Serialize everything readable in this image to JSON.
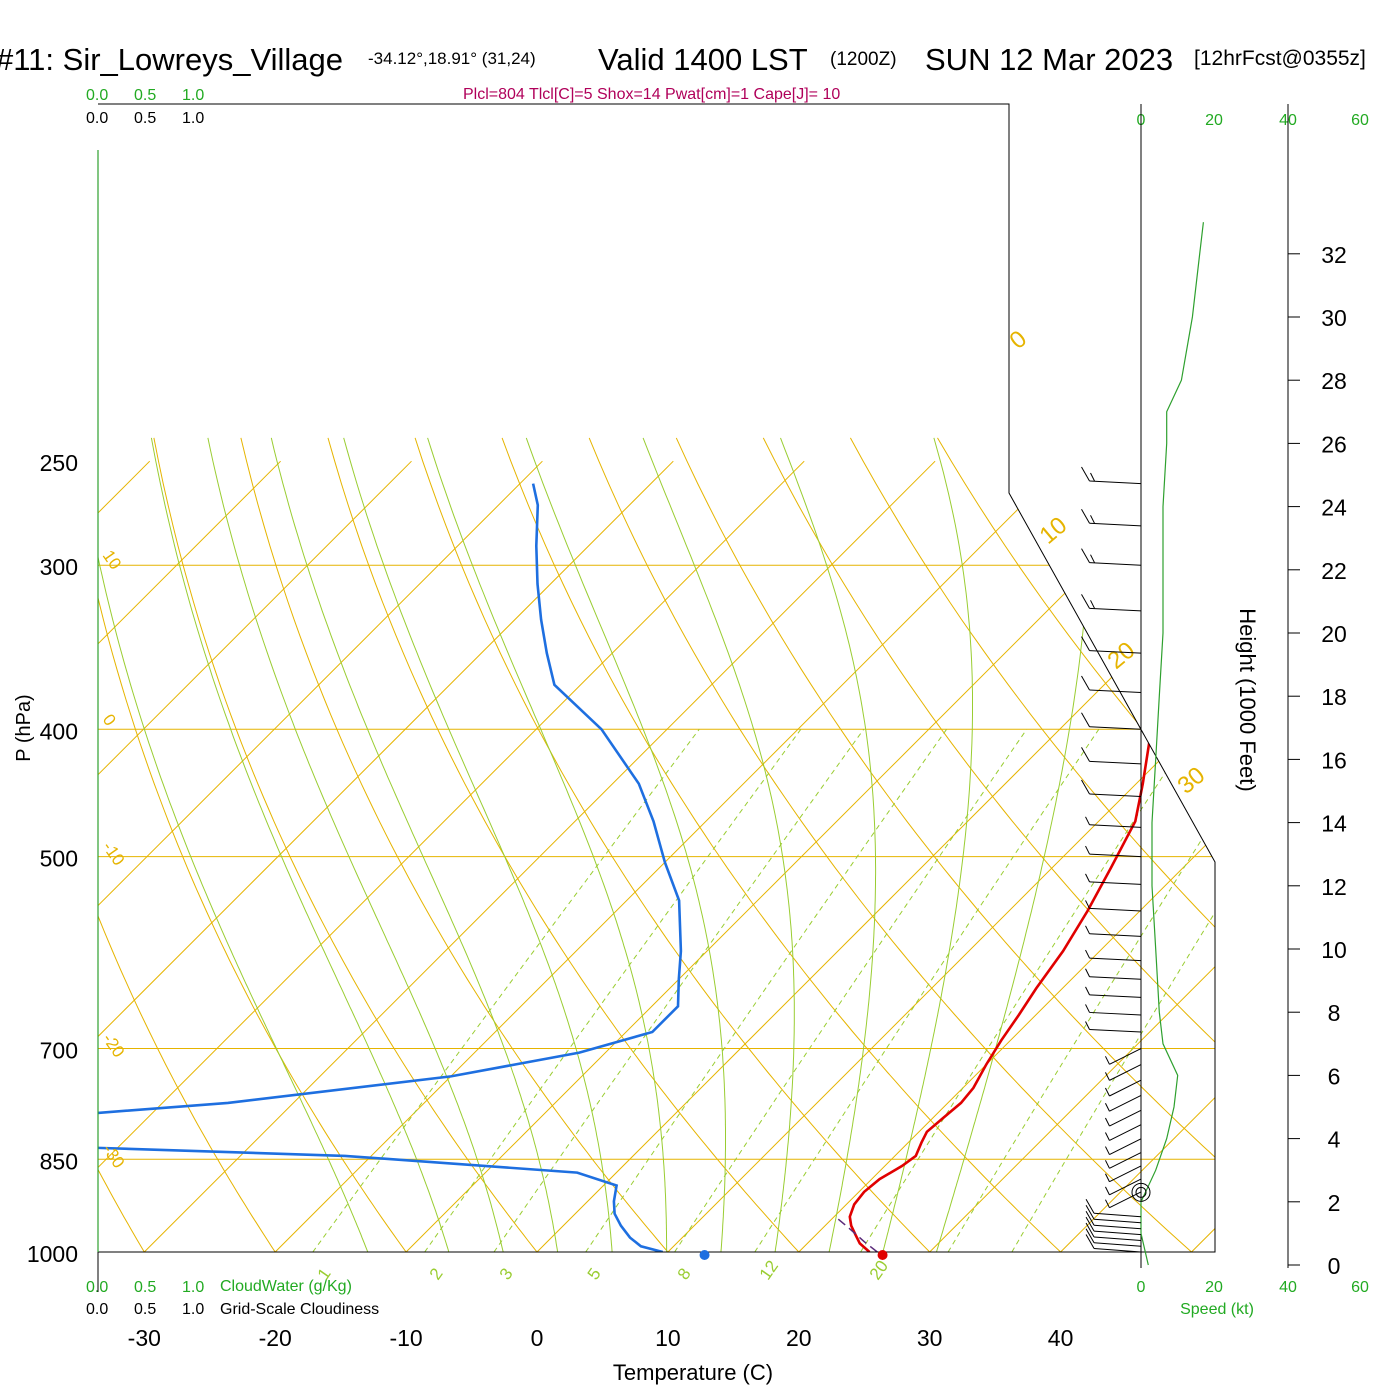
{
  "header": {
    "station": "#11: Sir_Lowreys_Village",
    "coords": "-34.12°,18.91° (31,24)",
    "valid": "Valid 1400 LST",
    "zulu": "(1200Z)",
    "date": "SUN 12 Mar 2023",
    "forecast": "[12hrFcst@0355z]",
    "indices": "Plcl=804 Tlcl[C]=5 Shox=14 Pwat[cm]=1 Cape[J]= 10"
  },
  "scales": {
    "cloud_top": [
      "0.0",
      "0.5",
      "1.0"
    ],
    "cloud_top_black": [
      "0.0",
      "0.5",
      "1.0"
    ],
    "cloud_bottom": [
      "0.0",
      "0.5",
      "1.0"
    ],
    "cloud_bottom_black": [
      "0.0",
      "0.5",
      "1.0"
    ],
    "cloudwater_label": "CloudWater (g/Kg)",
    "cloudiness_label": "Grid-Scale Cloudiness",
    "speed_ticks": [
      "0",
      "20",
      "40",
      "60"
    ],
    "speed_label": "Speed (kt)"
  },
  "colors": {
    "isotherm": "#e6b400",
    "dry_adiabat": "#9acd32",
    "moist_adiabat": "#9acd32",
    "mixing_ratio": "#9acd32",
    "temperature": "#e00000",
    "dewpoint": "#1e6fe0",
    "speed": "#2ea02e",
    "green_text": "#22aa22",
    "magenta": "#b0005a"
  },
  "chart_data": {
    "type": "line",
    "title": "Skew-T log-P sounding",
    "xlabel": "Temperature (C)",
    "ylabel": "P (hPa)",
    "y2label": "Height (1000 Feet)",
    "xlim": [
      -34,
      36
    ],
    "ylim": [
      1000,
      250
    ],
    "pressure_ticks": [
      1000,
      850,
      700,
      500,
      400,
      300,
      250
    ],
    "temperature_ticks": [
      -30,
      -20,
      -10,
      0,
      10,
      20,
      30,
      40
    ],
    "height_ticks": [
      0,
      2,
      4,
      6,
      8,
      10,
      12,
      14,
      16,
      18,
      20,
      22,
      24,
      26,
      28,
      30,
      32
    ],
    "isotherm_labels": [
      {
        "temp": 10,
        "text": "10"
      },
      {
        "temp": 0,
        "text": "0"
      },
      {
        "temp": -10,
        "text": "-10"
      },
      {
        "temp": -20,
        "text": "-20"
      },
      {
        "temp": -30,
        "text": "-30"
      }
    ],
    "isotherm_labels_right": [
      {
        "temp": 0,
        "text": "0"
      },
      {
        "temp": 10,
        "text": "10"
      },
      {
        "temp": 20,
        "text": "20"
      },
      {
        "temp": 30,
        "text": "30"
      }
    ],
    "mixing_ratio_labels": [
      "1",
      "2",
      "3",
      "5",
      "8",
      "12",
      "20"
    ],
    "mixing_ratio_values": [
      1,
      2,
      3,
      5,
      8,
      12,
      20
    ],
    "series": [
      {
        "name": "Temperature",
        "points": [
          [
            25.4,
            1000
          ],
          [
            24.0,
            985
          ],
          [
            23.0,
            970
          ],
          [
            22.0,
            955
          ],
          [
            21.2,
            940
          ],
          [
            20.6,
            920
          ],
          [
            20.4,
            900
          ],
          [
            20.6,
            880
          ],
          [
            21.3,
            860
          ],
          [
            21.6,
            845
          ],
          [
            21.0,
            825
          ],
          [
            20.6,
            810
          ],
          [
            20.8,
            790
          ],
          [
            21.0,
            770
          ],
          [
            20.8,
            750
          ],
          [
            20.0,
            720
          ],
          [
            19.3,
            690
          ],
          [
            18.7,
            660
          ],
          [
            18.0,
            630
          ],
          [
            17.2,
            590
          ],
          [
            16.0,
            550
          ],
          [
            14.5,
            510
          ],
          [
            12.8,
            470
          ],
          [
            10.5,
            440
          ],
          [
            7.0,
            400
          ],
          [
            2.0,
            355
          ],
          [
            -4.0,
            315
          ],
          [
            -9.0,
            285
          ],
          [
            -14.5,
            260
          ]
        ]
      },
      {
        "name": "Dewpoint",
        "points": [
          [
            9.6,
            1000
          ],
          [
            7.5,
            990
          ],
          [
            6.0,
            975
          ],
          [
            4.4,
            955
          ],
          [
            3.0,
            935
          ],
          [
            2.0,
            915
          ],
          [
            1.0,
            890
          ],
          [
            -3.0,
            870
          ],
          [
            -22.0,
            845
          ],
          [
            -55.0,
            825
          ],
          [
            -55.0,
            800
          ],
          [
            -35.0,
            770
          ],
          [
            -20.0,
            735
          ],
          [
            -12.0,
            705
          ],
          [
            -8.0,
            680
          ],
          [
            -8.0,
            650
          ],
          [
            -10.0,
            620
          ],
          [
            -12.0,
            590
          ],
          [
            -16.0,
            540
          ],
          [
            -20.0,
            505
          ],
          [
            -24.0,
            470
          ],
          [
            -28.0,
            440
          ],
          [
            -35.0,
            400
          ],
          [
            -42.0,
            370
          ],
          [
            -45.0,
            350
          ],
          [
            -48.0,
            330
          ],
          [
            -51.0,
            310
          ],
          [
            -54.0,
            290
          ],
          [
            -57.0,
            270
          ],
          [
            -59.0,
            260
          ]
        ]
      },
      {
        "name": "Parcel",
        "points": [
          [
            26.0,
            1000
          ],
          [
            24.2,
            982
          ],
          [
            22.3,
            962
          ],
          [
            20.5,
            944
          ]
        ]
      }
    ],
    "surface_temperature": {
      "temp": 26.4,
      "pressure": 1000
    },
    "surface_dewpoint": {
      "temp": 12.8,
      "pressure": 1000
    },
    "speed_profile": [
      {
        "height": 0,
        "speed": 2
      },
      {
        "height": 1,
        "speed": 0
      },
      {
        "height": 2,
        "speed": 0
      },
      {
        "height": 3,
        "speed": 4
      },
      {
        "height": 4,
        "speed": 7
      },
      {
        "height": 5,
        "speed": 9
      },
      {
        "height": 6,
        "speed": 10
      },
      {
        "height": 7,
        "speed": 6
      },
      {
        "height": 8,
        "speed": 5
      },
      {
        "height": 10,
        "speed": 4
      },
      {
        "height": 12,
        "speed": 3
      },
      {
        "height": 14,
        "speed": 3
      },
      {
        "height": 16,
        "speed": 4
      },
      {
        "height": 18,
        "speed": 5
      },
      {
        "height": 20,
        "speed": 6
      },
      {
        "height": 22,
        "speed": 6
      },
      {
        "height": 24,
        "speed": 6
      },
      {
        "height": 26,
        "speed": 7
      },
      {
        "height": 27,
        "speed": 7
      },
      {
        "height": 28,
        "speed": 11
      },
      {
        "height": 30,
        "speed": 14
      },
      {
        "height": 32,
        "speed": 16
      },
      {
        "height": 33,
        "speed": 17
      }
    ],
    "wind_barbs": [
      {
        "pressure": 1000,
        "speed_kt": 10
      },
      {
        "pressure": 990,
        "speed_kt": 10
      },
      {
        "pressure": 980,
        "speed_kt": 10
      },
      {
        "pressure": 970,
        "speed_kt": 10
      },
      {
        "pressure": 960,
        "speed_kt": 10
      },
      {
        "pressure": 950,
        "speed_kt": 10
      },
      {
        "pressure": 940,
        "speed_kt": 10
      },
      {
        "pressure": 900,
        "speed_kt": 5
      },
      {
        "pressure": 880,
        "speed_kt": 5
      },
      {
        "pressure": 860,
        "speed_kt": 5
      },
      {
        "pressure": 840,
        "speed_kt": 5
      },
      {
        "pressure": 820,
        "speed_kt": 5
      },
      {
        "pressure": 800,
        "speed_kt": 5
      },
      {
        "pressure": 780,
        "speed_kt": 5
      },
      {
        "pressure": 760,
        "speed_kt": 5
      },
      {
        "pressure": 740,
        "speed_kt": 5
      },
      {
        "pressure": 720,
        "speed_kt": 5
      },
      {
        "pressure": 700,
        "speed_kt": 5
      },
      {
        "pressure": 680,
        "speed_kt": 5
      },
      {
        "pressure": 660,
        "speed_kt": 5
      },
      {
        "pressure": 640,
        "speed_kt": 5
      },
      {
        "pressure": 620,
        "speed_kt": 5
      },
      {
        "pressure": 600,
        "speed_kt": 5
      },
      {
        "pressure": 575,
        "speed_kt": 5
      },
      {
        "pressure": 550,
        "speed_kt": 5
      },
      {
        "pressure": 525,
        "speed_kt": 5
      },
      {
        "pressure": 500,
        "speed_kt": 5
      },
      {
        "pressure": 475,
        "speed_kt": 5
      },
      {
        "pressure": 450,
        "speed_kt": 10
      },
      {
        "pressure": 425,
        "speed_kt": 10
      },
      {
        "pressure": 400,
        "speed_kt": 10
      },
      {
        "pressure": 375,
        "speed_kt": 10
      },
      {
        "pressure": 350,
        "speed_kt": 10
      },
      {
        "pressure": 325,
        "speed_kt": 15
      },
      {
        "pressure": 300,
        "speed_kt": 15
      },
      {
        "pressure": 280,
        "speed_kt": 15
      },
      {
        "pressure": 260,
        "speed_kt": 15
      }
    ],
    "calm_marker": {
      "height": 2.3
    }
  }
}
